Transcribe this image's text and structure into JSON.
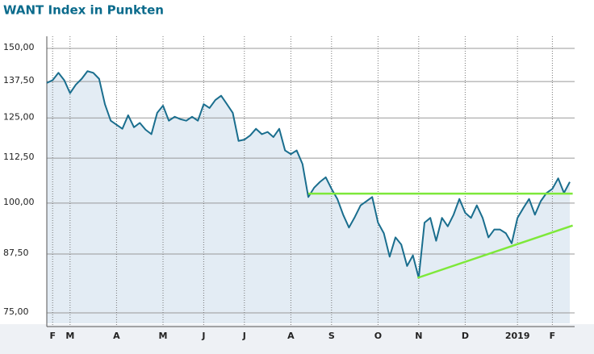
{
  "chart_data": {
    "type": "line",
    "title": "WANT Index in Punkten",
    "categories": [
      null,
      "F",
      null,
      null,
      "M",
      null,
      null,
      null,
      null,
      null,
      null,
      null,
      "A",
      null,
      null,
      null,
      null,
      null,
      null,
      null,
      "M",
      null,
      null,
      null,
      null,
      null,
      null,
      "J",
      null,
      null,
      null,
      null,
      null,
      null,
      "J",
      null,
      null,
      null,
      null,
      null,
      null,
      null,
      "A",
      null,
      null,
      null,
      null,
      null,
      null,
      "S",
      null,
      null,
      null,
      null,
      null,
      null,
      null,
      "O",
      null,
      null,
      null,
      null,
      null,
      null,
      "N",
      null,
      null,
      null,
      null,
      null,
      null,
      null,
      "D",
      null,
      null,
      null,
      null,
      null,
      null,
      null,
      null,
      "2019",
      null,
      null,
      null,
      null,
      null,
      "F",
      null,
      null,
      null
    ],
    "series": [
      {
        "color": "#1a6e8e",
        "values": [
          137,
          138,
          140.7,
          138,
          133.4,
          136.4,
          138.5,
          141.3,
          140.7,
          138.5,
          129.6,
          124.1,
          122.8,
          121.5,
          125.9,
          122,
          123.4,
          121.2,
          119.8,
          126.7,
          129.1,
          124.1,
          125.4,
          124.6,
          124.1,
          125.4,
          124.1,
          129.6,
          128.3,
          131,
          132.5,
          129.6,
          126.7,
          117.7,
          118.1,
          119.4,
          121.5,
          119.8,
          120.5,
          118.9,
          121.5,
          114.8,
          113.7,
          114.8,
          110.8,
          101.6,
          104.1,
          105.7,
          107,
          103.8,
          101.1,
          97,
          93.8,
          96.4,
          99.4,
          100.5,
          101.6,
          95,
          92.4,
          86.9,
          91.4,
          89.7,
          84.8,
          87.2,
          82.2,
          95,
          96.2,
          90.6,
          96.2,
          94.1,
          97,
          101.1,
          97.5,
          96.2,
          99.4,
          96.2,
          91.4,
          93.3,
          93.3,
          92.4,
          90,
          96.2,
          98.7,
          101.1,
          97,
          100.5,
          102.7,
          103.8,
          106.7,
          102.7,
          105.7
        ]
      }
    ],
    "trendlines": [
      {
        "color": "#7ee83a",
        "x": [
          45,
          90.5
        ],
        "values": [
          102.5,
          102.5
        ]
      },
      {
        "color": "#7ee83a",
        "x": [
          63.8,
          90.5
        ],
        "values": [
          82.2,
          94.3
        ]
      }
    ],
    "ylim": [
      75,
      150
    ],
    "log_y": true,
    "yticks": [
      {
        "value": 75,
        "label": "75,00"
      },
      {
        "value": 87.5,
        "label": "87,50"
      },
      {
        "value": 100,
        "label": "100,00"
      },
      {
        "value": 112.5,
        "label": "112,50"
      },
      {
        "value": 125,
        "label": "125,00"
      },
      {
        "value": 137.5,
        "label": "137,50"
      },
      {
        "value": 150,
        "label": "150,00"
      }
    ],
    "grid": true
  }
}
